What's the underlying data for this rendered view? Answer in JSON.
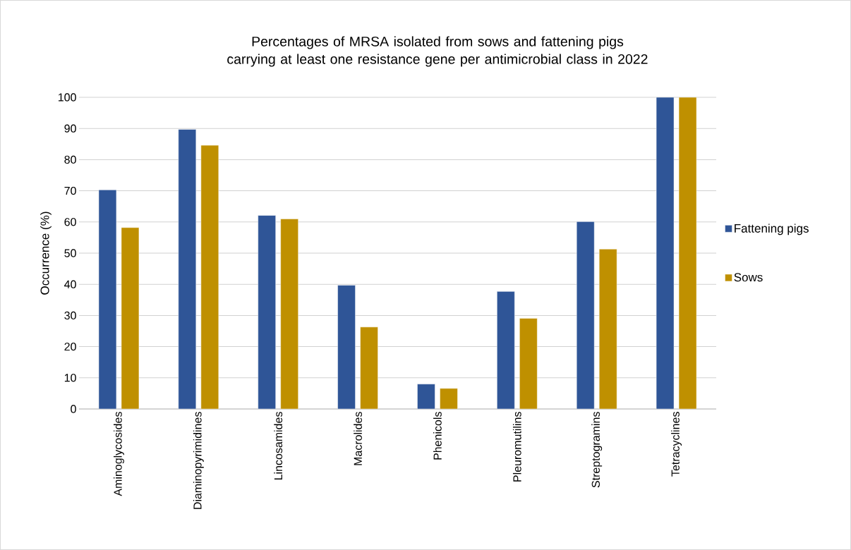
{
  "chart_data": {
    "type": "bar",
    "title": "Percentages of MRSA isolated from sows and fattening pigs carrying at least one resistance gene per antimicrobial class in 2022",
    "ylabel": "Occurrence (%)",
    "categories": [
      "Aminoglycosides",
      "Diaminopyrimidines",
      "Lincosamides",
      "Macrolides",
      "Phenicols",
      "Pleuromutilins",
      "Streptogramins",
      "Tetracyclines"
    ],
    "series": [
      {
        "name": "Fattening pigs",
        "color": "#2f5597",
        "values": [
          70.3,
          89.7,
          62.1,
          39.7,
          8.0,
          37.7,
          60.1,
          100
        ]
      },
      {
        "name": "Sows",
        "color": "#bf9000",
        "values": [
          58.2,
          84.6,
          61.0,
          26.3,
          6.6,
          29.1,
          51.3,
          100
        ]
      }
    ],
    "ylim": [
      0,
      100
    ],
    "yticks": [
      0,
      10,
      20,
      30,
      40,
      50,
      60,
      70,
      80,
      90,
      100
    ],
    "grid": "y",
    "legend": "right"
  }
}
